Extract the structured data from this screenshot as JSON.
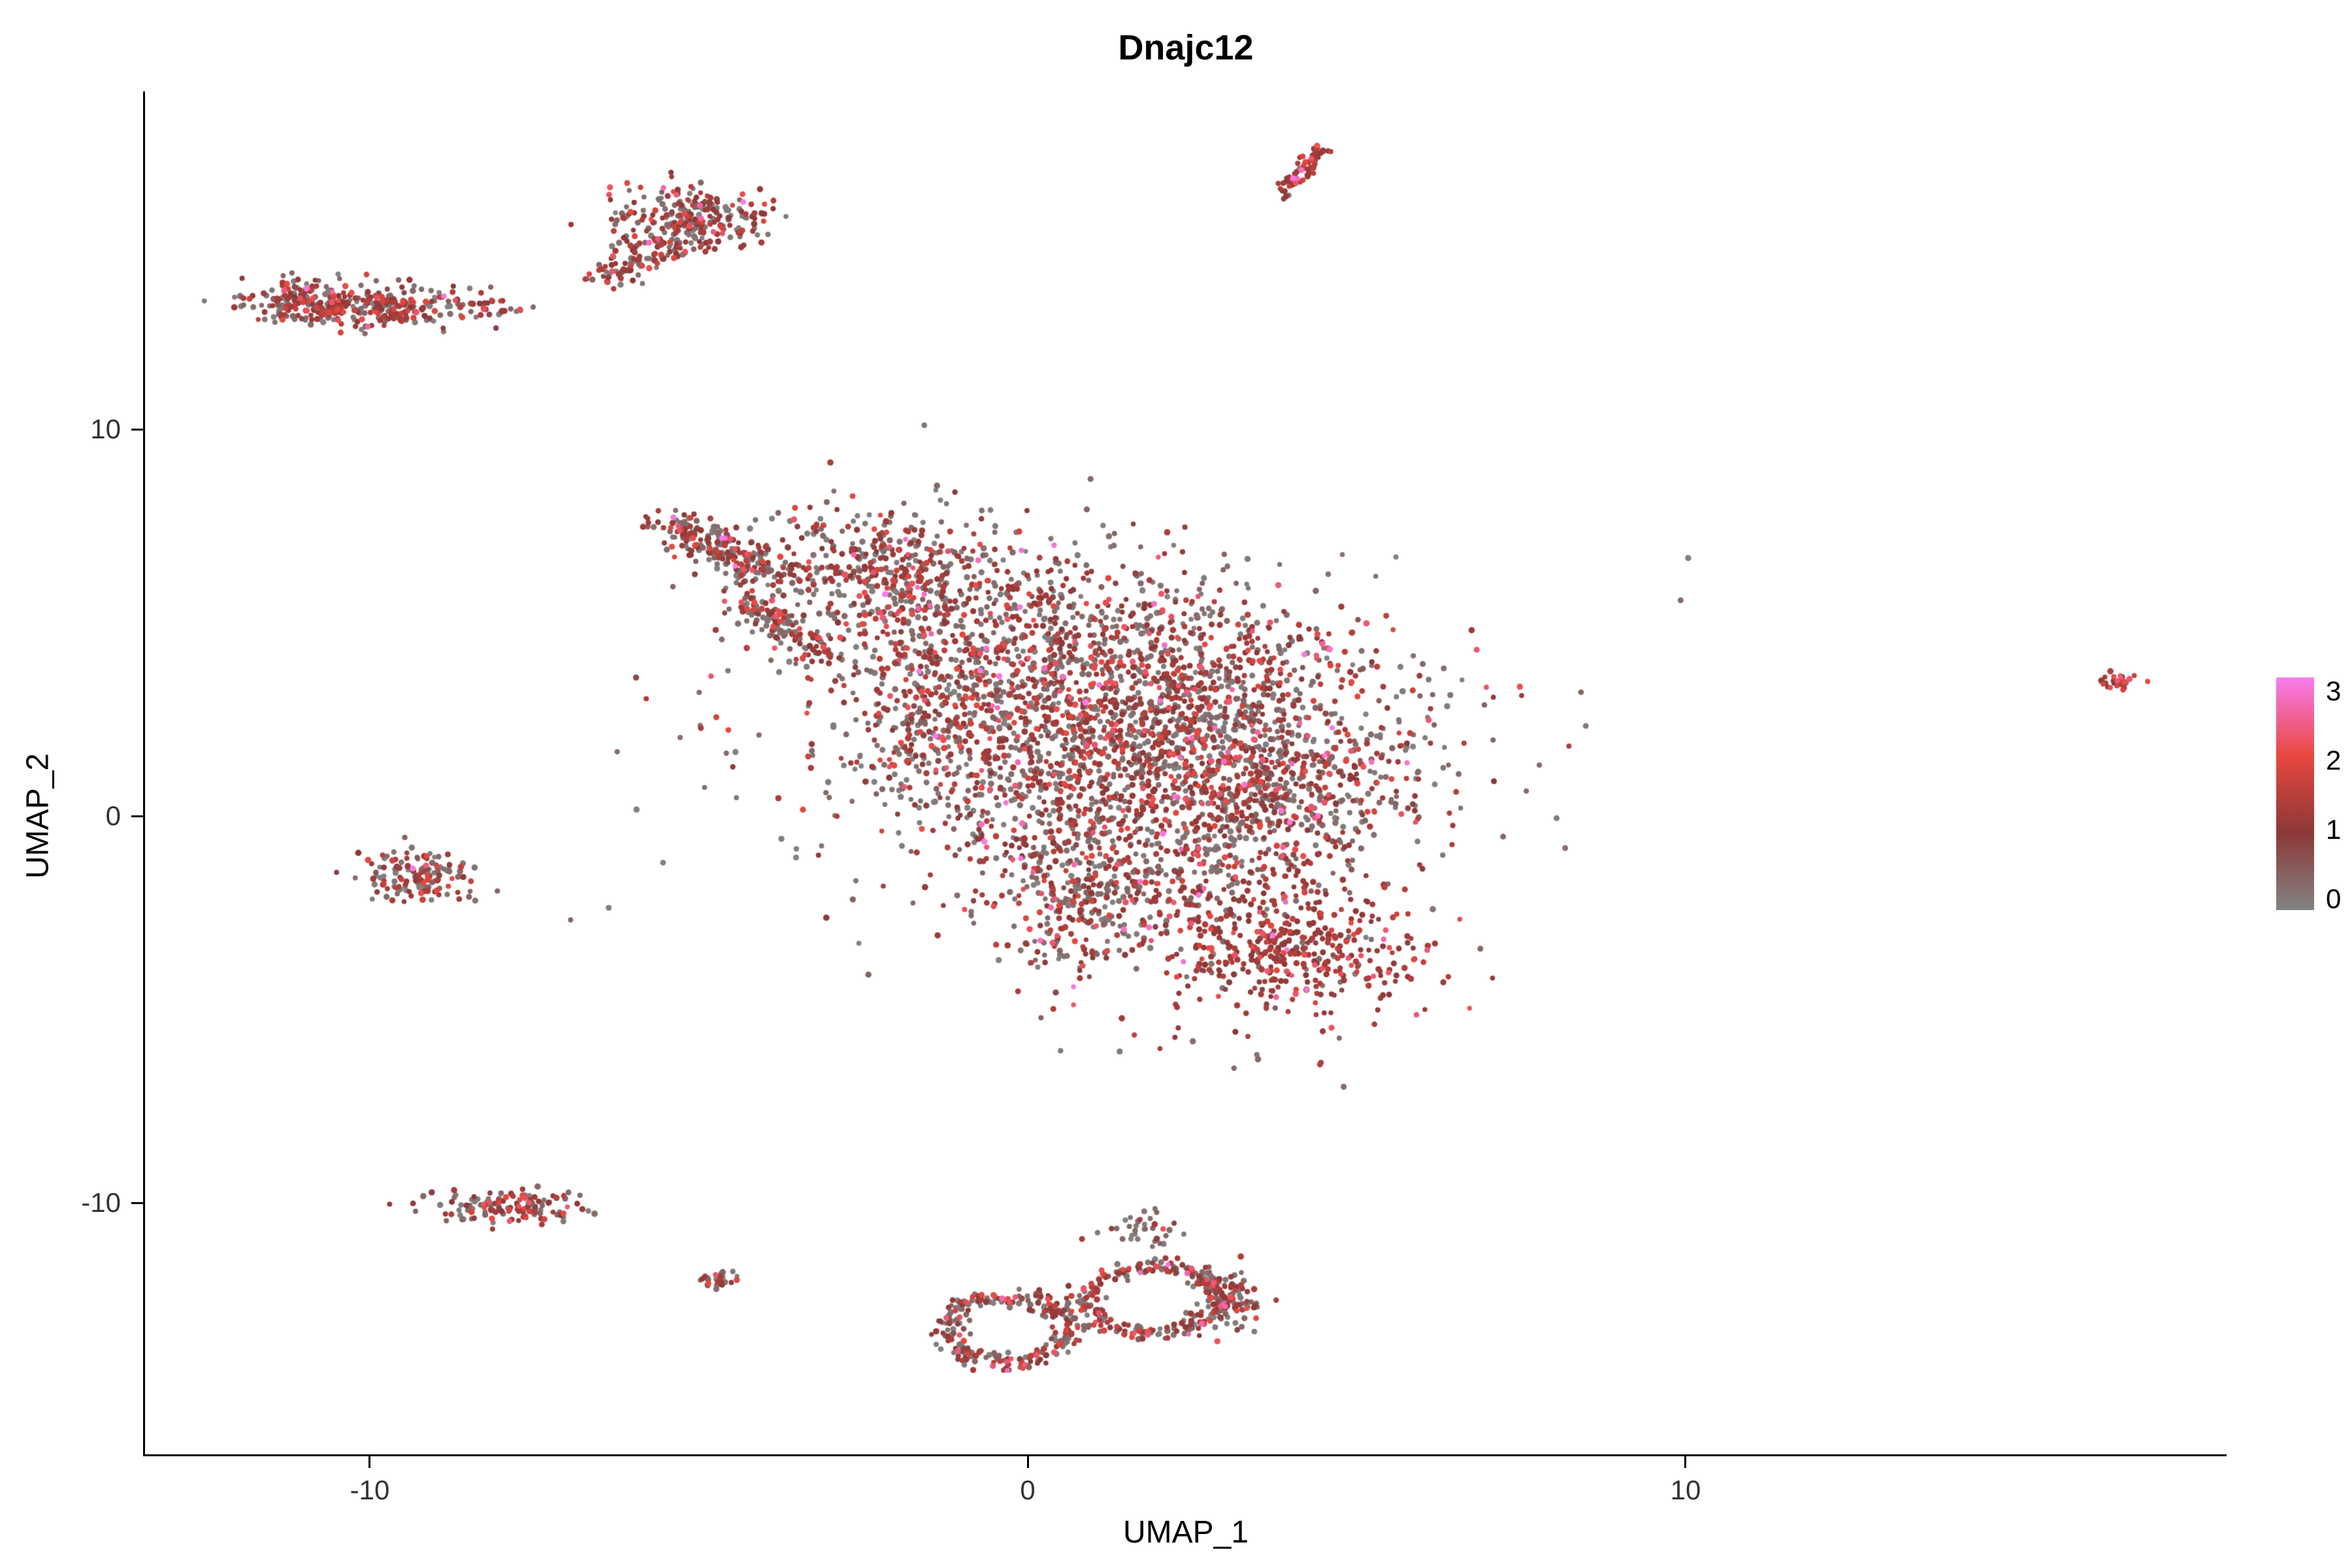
{
  "chart_data": {
    "type": "scatter",
    "title": "Dnajc12",
    "xlabel": "UMAP_1",
    "ylabel": "UMAP_2",
    "xlim": [
      -13.42,
      18.22
    ],
    "ylim": [
      -16.52,
      18.75
    ],
    "x_ticks": [
      -10,
      0,
      10
    ],
    "y_ticks": [
      10,
      0,
      -10
    ],
    "x_tick_labels": [
      "-10",
      "0",
      "10"
    ],
    "y_tick_labels": [
      "10",
      "0",
      "-10"
    ],
    "grid": false,
    "point_radius_px": 4.3,
    "legend": {
      "position": "right",
      "labels": [
        "3",
        "2",
        "1",
        "0"
      ],
      "values": [
        3,
        2,
        1,
        0
      ],
      "stops": [
        {
          "value": 0,
          "color": "#838383"
        },
        {
          "value": 1,
          "color": "#8C3838"
        },
        {
          "value": 2,
          "color": "#E8483F"
        },
        {
          "value": 3,
          "color": "#F97CEE"
        }
      ]
    },
    "expression_presets": {
      "default": {
        "gray": 0.46,
        "dark": 0.42,
        "red": 0.1,
        "pink": 0.02
      },
      "dark": {
        "gray": 0.06,
        "dark": 0.8,
        "red": 0.13,
        "pink": 0.01
      },
      "warm": {
        "gray": 0.15,
        "dark": 0.45,
        "red": 0.4,
        "pink": 0.0
      },
      "grayish": {
        "gray": 0.75,
        "dark": 0.22,
        "red": 0.03,
        "pink": 0.0
      }
    },
    "clusters": [
      {
        "name": "top-streak",
        "type": "line",
        "from": [
          3.85,
          16.0
        ],
        "to": [
          4.45,
          17.3
        ],
        "jitter": 0.07,
        "n": 70,
        "expr": "dark"
      },
      {
        "name": "top-left-band",
        "type": "gauss",
        "center": [
          -9.8,
          13.2
        ],
        "sx": 0.85,
        "sy": 0.28,
        "n": 280
      },
      {
        "name": "top-left-band-end",
        "type": "gauss",
        "center": [
          -11.0,
          13.35
        ],
        "sx": 0.4,
        "sy": 0.3,
        "n": 120
      },
      {
        "name": "top-left-stray",
        "type": "gauss",
        "center": [
          -7.9,
          13.05
        ],
        "sx": 0.15,
        "sy": 0.08,
        "n": 8
      },
      {
        "name": "upper-cluster",
        "type": "gauss",
        "center": [
          -5.1,
          15.4
        ],
        "sx": 0.55,
        "sy": 0.45,
        "n": 260
      },
      {
        "name": "upper-cluster-tail",
        "type": "line",
        "from": [
          -6.5,
          13.9
        ],
        "to": [
          -5.5,
          14.8
        ],
        "jitter": 0.18,
        "n": 90
      },
      {
        "name": "main-wedge",
        "type": "line",
        "from": [
          -5.5,
          7.6
        ],
        "to": [
          -3.9,
          6.3
        ],
        "jitter": 0.25,
        "n": 220
      },
      {
        "name": "main-flap",
        "type": "line",
        "from": [
          -4.4,
          5.7
        ],
        "to": [
          -3.1,
          4.1
        ],
        "jitter": 0.18,
        "n": 130
      },
      {
        "name": "main-blob-1",
        "type": "gauss",
        "center": [
          -2.3,
          6.4
        ],
        "sx": 1.0,
        "sy": 0.85,
        "n": 380
      },
      {
        "name": "main-blob-2",
        "type": "gauss",
        "center": [
          -0.2,
          4.6
        ],
        "sx": 1.5,
        "sy": 1.25,
        "n": 650
      },
      {
        "name": "main-blob-3",
        "type": "gauss",
        "center": [
          2.3,
          3.2
        ],
        "sx": 1.6,
        "sy": 1.3,
        "n": 780
      },
      {
        "name": "main-blob-4",
        "type": "gauss",
        "center": [
          1.0,
          1.2
        ],
        "sx": 1.7,
        "sy": 1.4,
        "n": 850
      },
      {
        "name": "main-blob-5",
        "type": "gauss",
        "center": [
          3.9,
          0.8
        ],
        "sx": 1.2,
        "sy": 1.1,
        "n": 480
      },
      {
        "name": "main-blob-6",
        "type": "gauss",
        "center": [
          1.9,
          -1.3
        ],
        "sx": 1.4,
        "sy": 0.95,
        "n": 420
      },
      {
        "name": "main-lower-lobe",
        "type": "gauss",
        "center": [
          4.0,
          -3.4
        ],
        "sx": 1.05,
        "sy": 0.85,
        "n": 430,
        "expr": "dark"
      },
      {
        "name": "main-finger",
        "type": "gauss",
        "center": [
          0.7,
          -2.7
        ],
        "sx": 0.5,
        "sy": 0.8,
        "n": 140
      },
      {
        "name": "main-left-edge",
        "type": "gauss",
        "center": [
          -1.6,
          2.2
        ],
        "sx": 0.7,
        "sy": 1.0,
        "n": 180
      },
      {
        "name": "main-halo",
        "type": "gauss",
        "center": [
          0.8,
          2.0
        ],
        "sx": 3.2,
        "sy": 2.6,
        "n": 250,
        "expr": "grayish"
      },
      {
        "name": "left-small",
        "type": "gauss",
        "center": [
          -9.3,
          -1.6
        ],
        "sx": 0.42,
        "sy": 0.35,
        "n": 140
      },
      {
        "name": "lower-left-bar",
        "type": "gauss",
        "center": [
          -7.8,
          -10.1
        ],
        "sx": 0.55,
        "sy": 0.22,
        "n": 140
      },
      {
        "name": "tiny-dot-cluster",
        "type": "gauss",
        "center": [
          -4.7,
          -12.0
        ],
        "sx": 0.16,
        "sy": 0.13,
        "n": 30
      },
      {
        "name": "bottom-ring-left",
        "type": "ring",
        "center": [
          -0.3,
          -13.3
        ],
        "rx": 0.95,
        "ry": 0.85,
        "width": 0.28,
        "n": 260
      },
      {
        "name": "bottom-ring-right",
        "type": "ring",
        "center": [
          1.9,
          -12.5
        ],
        "rx": 1.05,
        "ry": 0.85,
        "width": 0.26,
        "n": 280
      },
      {
        "name": "bottom-right-blob",
        "type": "gauss",
        "center": [
          3.1,
          -12.7
        ],
        "sx": 0.25,
        "sy": 0.45,
        "n": 70
      },
      {
        "name": "bottom-top-bits",
        "type": "gauss",
        "center": [
          1.8,
          -10.7
        ],
        "sx": 0.5,
        "sy": 0.25,
        "n": 35,
        "expr": "grayish"
      },
      {
        "name": "far-right-tiny",
        "type": "gauss",
        "center": [
          16.6,
          3.5
        ],
        "sx": 0.17,
        "sy": 0.15,
        "n": 26,
        "expr": "warm"
      },
      {
        "name": "sparse-strays",
        "type": "gauss",
        "center": [
          1.6,
          -6.0
        ],
        "sx": 1.2,
        "sy": 0.6,
        "n": 12,
        "expr": "grayish"
      }
    ]
  }
}
